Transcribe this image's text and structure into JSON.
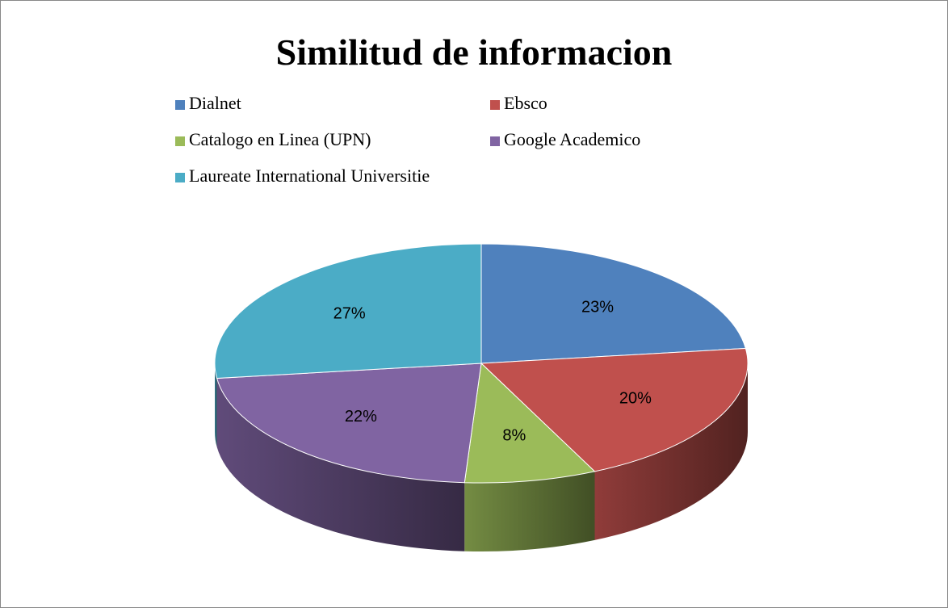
{
  "chart_data": {
    "type": "pie",
    "title": "Similitud de informacion",
    "categories": [
      "Dialnet",
      "Ebsco",
      "Catalogo en Linea (UPN)",
      "Google Academico",
      "Laureate International Universitie"
    ],
    "values": [
      23,
      20,
      8,
      22,
      27
    ],
    "value_labels": [
      "23%",
      "20%",
      "8%",
      "22%",
      "27%"
    ],
    "colors": [
      "#4f81bd",
      "#c0504d",
      "#9bbb59",
      "#8064a2",
      "#4bacc6"
    ],
    "legend": "top"
  }
}
